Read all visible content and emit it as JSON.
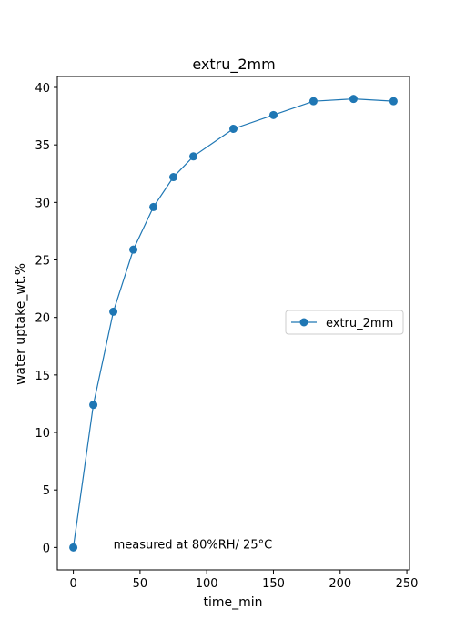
{
  "chart_data": {
    "type": "line",
    "title": "extru_2mm",
    "xlabel": "time_min",
    "ylabel": "water uptake_wt.%",
    "xlim": [
      -12,
      252
    ],
    "ylim": [
      -1.95,
      40.95
    ],
    "xticks": [
      0,
      50,
      100,
      150,
      200,
      250
    ],
    "yticks": [
      0,
      5,
      10,
      15,
      20,
      25,
      30,
      35,
      40
    ],
    "grid": false,
    "legend_placement": "center-right",
    "series": [
      {
        "name": "extru_2mm",
        "color": "#1f77b4",
        "marker": "circle",
        "x": [
          0,
          15,
          30,
          45,
          60,
          75,
          90,
          120,
          150,
          180,
          210,
          240
        ],
        "y": [
          0,
          12.4,
          20.5,
          25.9,
          29.6,
          32.2,
          34.0,
          36.4,
          37.6,
          38.8,
          39.0,
          38.8
        ]
      }
    ],
    "annotations": [
      {
        "text": "measured at 80%RH/ 25°C",
        "x": 30,
        "y": 0
      }
    ]
  }
}
